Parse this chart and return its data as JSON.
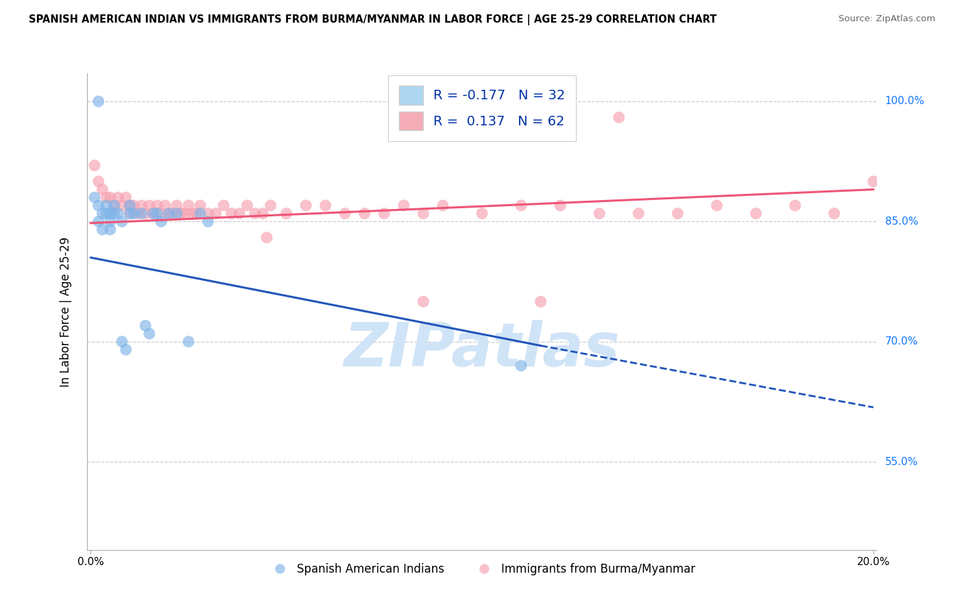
{
  "title": "SPANISH AMERICAN INDIAN VS IMMIGRANTS FROM BURMA/MYANMAR IN LABOR FORCE | AGE 25-29 CORRELATION CHART",
  "source": "Source: ZipAtlas.com",
  "ylabel": "In Labor Force | Age 25-29",
  "xlim": [
    -0.001,
    0.201
  ],
  "ylim": [
    0.44,
    1.035
  ],
  "ytick_values": [
    0.55,
    0.7,
    0.85,
    1.0
  ],
  "ytick_labels": [
    "55.0%",
    "70.0%",
    "85.0%",
    "100.0%"
  ],
  "xtick_values": [
    0.0,
    0.2
  ],
  "xtick_labels": [
    "0.0%",
    "20.0%"
  ],
  "blue_R": -0.177,
  "blue_N": 32,
  "pink_R": 0.137,
  "pink_N": 62,
  "blue_color": "#7EB3E8",
  "pink_color": "#F5A0B0",
  "blue_line_color": "#2255BB",
  "pink_line_color": "#EE5577",
  "legend_box_blue": "#AED6F1",
  "legend_box_pink": "#F4ACB7",
  "watermark_color": "#D0E4F7",
  "blue_x": [
    0.001,
    0.002,
    0.002,
    0.003,
    0.003,
    0.004,
    0.004,
    0.005,
    0.005,
    0.005,
    0.006,
    0.006,
    0.007,
    0.008,
    0.008,
    0.009,
    0.01,
    0.01,
    0.011,
    0.013,
    0.014,
    0.015,
    0.016,
    0.017,
    0.018,
    0.02,
    0.022,
    0.025,
    0.028,
    0.03,
    0.11,
    0.002
  ],
  "blue_y": [
    0.88,
    0.87,
    0.85,
    0.86,
    0.84,
    0.87,
    0.86,
    0.86,
    0.85,
    0.84,
    0.86,
    0.87,
    0.86,
    0.85,
    0.7,
    0.69,
    0.86,
    0.87,
    0.86,
    0.86,
    0.72,
    0.71,
    0.86,
    0.86,
    0.85,
    0.86,
    0.86,
    0.7,
    0.86,
    0.85,
    0.67,
    1.0
  ],
  "pink_x": [
    0.001,
    0.002,
    0.003,
    0.004,
    0.005,
    0.006,
    0.007,
    0.008,
    0.009,
    0.01,
    0.01,
    0.011,
    0.012,
    0.013,
    0.014,
    0.015,
    0.016,
    0.017,
    0.018,
    0.019,
    0.02,
    0.021,
    0.022,
    0.023,
    0.024,
    0.025,
    0.026,
    0.027,
    0.028,
    0.03,
    0.032,
    0.034,
    0.036,
    0.038,
    0.04,
    0.042,
    0.044,
    0.046,
    0.05,
    0.055,
    0.06,
    0.065,
    0.07,
    0.075,
    0.08,
    0.085,
    0.09,
    0.1,
    0.11,
    0.12,
    0.13,
    0.14,
    0.15,
    0.16,
    0.17,
    0.18,
    0.19,
    0.2,
    0.085,
    0.115,
    0.045,
    0.135
  ],
  "pink_y": [
    0.92,
    0.9,
    0.89,
    0.88,
    0.88,
    0.87,
    0.88,
    0.87,
    0.88,
    0.87,
    0.86,
    0.87,
    0.86,
    0.87,
    0.86,
    0.87,
    0.86,
    0.87,
    0.86,
    0.87,
    0.86,
    0.86,
    0.87,
    0.86,
    0.86,
    0.87,
    0.86,
    0.86,
    0.87,
    0.86,
    0.86,
    0.87,
    0.86,
    0.86,
    0.87,
    0.86,
    0.86,
    0.87,
    0.86,
    0.87,
    0.87,
    0.86,
    0.86,
    0.86,
    0.87,
    0.86,
    0.87,
    0.86,
    0.87,
    0.87,
    0.86,
    0.86,
    0.86,
    0.87,
    0.86,
    0.87,
    0.86,
    0.9,
    0.75,
    0.75,
    0.83,
    0.98
  ],
  "blue_line_x0": 0.0,
  "blue_line_y0": 0.805,
  "blue_line_x1": 0.115,
  "blue_line_y1": 0.695,
  "blue_line_x1_dash": 0.2,
  "blue_line_y1_dash": 0.618,
  "pink_line_x0": 0.0,
  "pink_line_y0": 0.848,
  "pink_line_x1": 0.2,
  "pink_line_y1": 0.89
}
